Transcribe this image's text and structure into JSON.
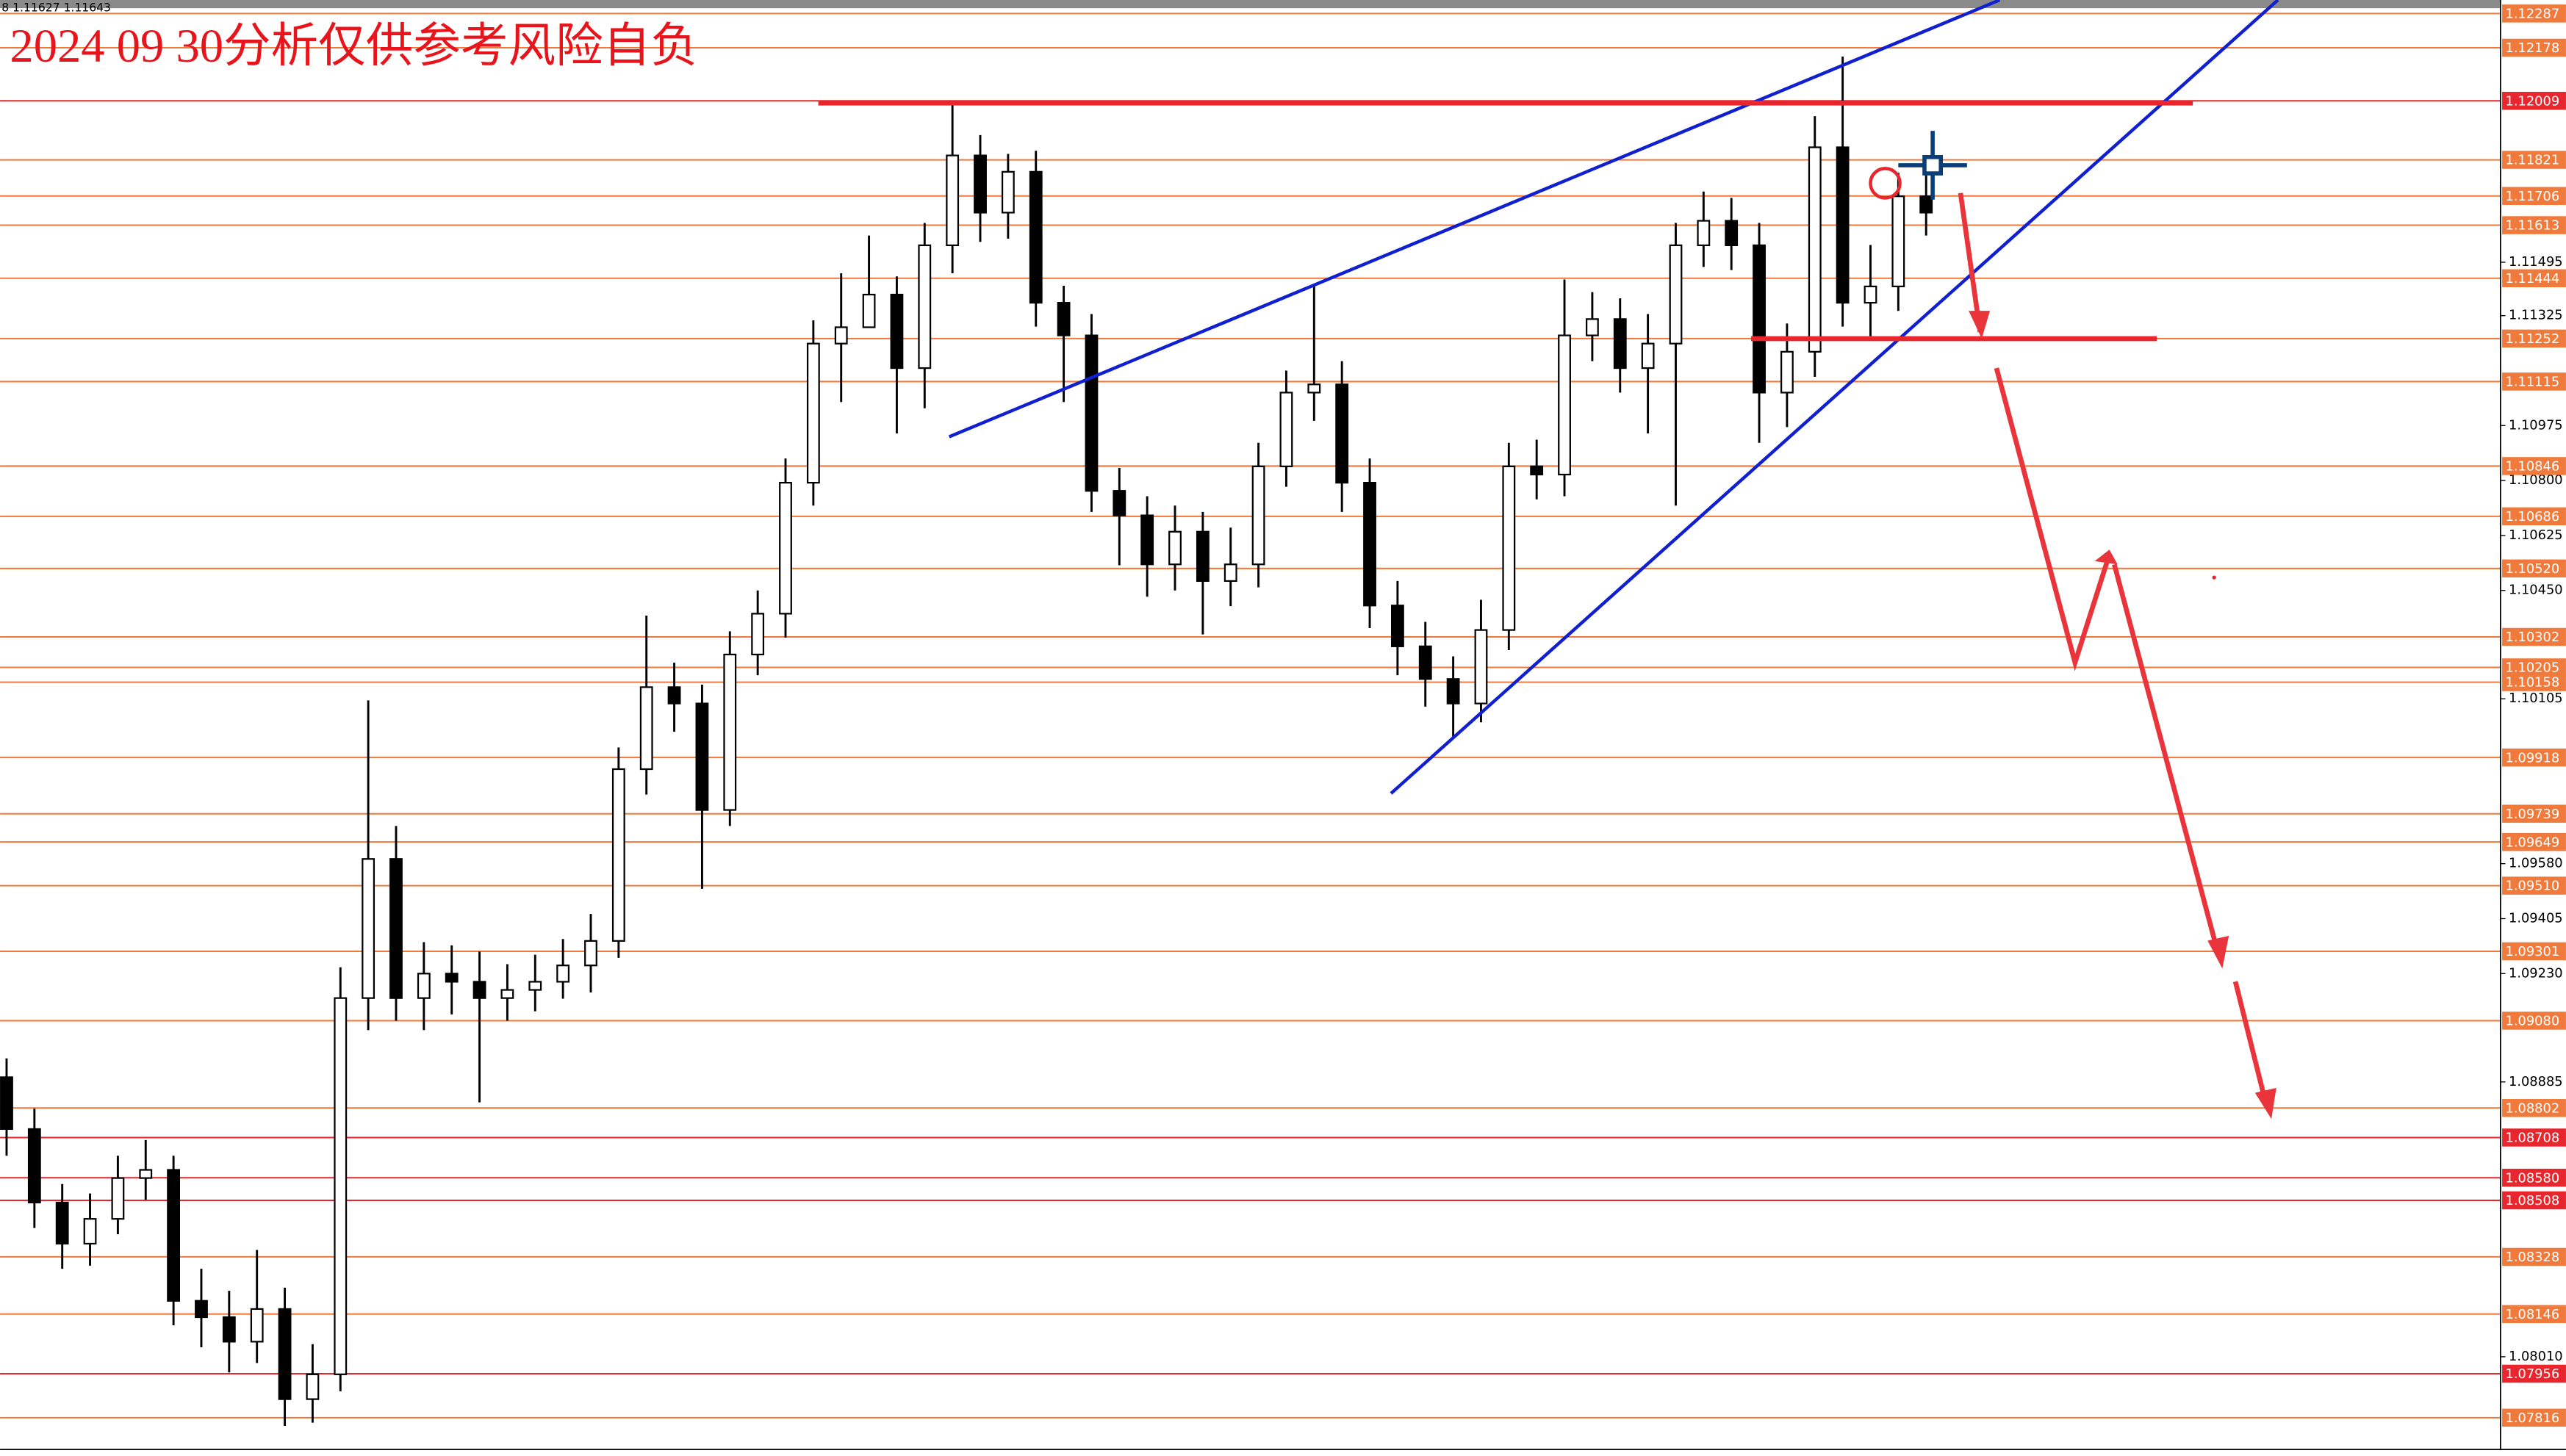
{
  "chart_data": {
    "type": "candlestick",
    "title": "2024 09 30分析仅供参考风险自负",
    "info_text": "8 1.11627 1.11643",
    "ylim": [
      1.0772,
      1.1233
    ],
    "up_color": "#ffffff",
    "down_color": "#000000",
    "wick_color": "#000000",
    "level_color": "#f07a3c",
    "red_level_color": "#e8262e",
    "open": [
      1.089,
      1.08735,
      1.08501,
      1.0837,
      1.08449,
      1.08579,
      1.08605,
      1.08188,
      1.08136,
      1.08058,
      1.08162,
      1.07875,
      1.07954,
      1.09152,
      1.09595,
      1.09152,
      1.0923,
      1.09204,
      1.09152,
      1.09178,
      1.09204,
      1.09256,
      1.09334,
      1.09881,
      1.10142,
      1.1009,
      1.09751,
      1.10246,
      1.10376,
      1.10793,
      1.11236,
      1.11288,
      1.11392,
      1.11158,
      1.11549,
      1.11835,
      1.11653,
      1.11783,
      1.11366,
      1.11262,
      1.10767,
      1.10689,
      1.10533,
      1.10637,
      1.1048,
      1.10533,
      1.10845,
      1.1108,
      1.11106,
      1.10793,
      1.10402,
      1.10272,
      1.10168,
      1.1009,
      1.10324,
      1.10845,
      1.10819,
      1.11262,
      1.11314,
      1.11158,
      1.11236,
      1.11549,
      1.11627,
      1.11549,
      1.1108,
      1.1121,
      1.11861,
      1.11366,
      1.11418,
      1.11705
    ],
    "high": [
      1.0896,
      1.088,
      1.0856,
      1.0853,
      1.0865,
      1.087,
      1.0865,
      1.0829,
      1.0822,
      1.0835,
      1.0823,
      1.0805,
      1.0925,
      1.101,
      1.097,
      1.0933,
      1.0932,
      1.093,
      1.0926,
      1.0929,
      1.0934,
      1.0942,
      1.0995,
      1.1037,
      1.1022,
      1.1015,
      1.1032,
      1.1045,
      1.1087,
      1.1131,
      1.1146,
      1.1158,
      1.1145,
      1.1162,
      1.12,
      1.119,
      1.1184,
      1.1185,
      1.1142,
      1.1133,
      1.1084,
      1.1075,
      1.1072,
      1.107,
      1.1065,
      1.1092,
      1.1115,
      1.1142,
      1.1118,
      1.1087,
      1.1048,
      1.1035,
      1.1024,
      1.1042,
      1.1092,
      1.1093,
      1.1144,
      1.114,
      1.1138,
      1.1133,
      1.1162,
      1.1172,
      1.117,
      1.1162,
      1.113,
      1.1196,
      1.1215,
      1.1155,
      1.1178,
      1.118
    ],
    "low": [
      1.0865,
      1.0842,
      1.0829,
      1.083,
      1.084,
      1.0851,
      1.0811,
      1.0804,
      1.0796,
      1.0799,
      1.0779,
      1.078,
      1.079,
      1.0905,
      1.0908,
      1.0905,
      1.091,
      1.0882,
      1.0908,
      1.0911,
      1.0915,
      1.0917,
      1.0928,
      1.098,
      1.1,
      1.095,
      1.097,
      1.1018,
      1.103,
      1.1072,
      1.1105,
      1.113,
      1.1095,
      1.1103,
      1.1146,
      1.1156,
      1.1157,
      1.1129,
      1.1105,
      1.107,
      1.1053,
      1.1043,
      1.1045,
      1.1031,
      1.104,
      1.1046,
      1.1078,
      1.1099,
      1.107,
      1.1033,
      1.1018,
      1.1008,
      1.0998,
      1.1003,
      1.1026,
      1.1074,
      1.1075,
      1.1118,
      1.1108,
      1.1095,
      1.1072,
      1.1148,
      1.1147,
      1.1092,
      1.1097,
      1.1113,
      1.1129,
      1.1126,
      1.1134,
      1.1158
    ],
    "close": [
      1.08735,
      1.08501,
      1.0837,
      1.08449,
      1.08579,
      1.08605,
      1.08188,
      1.08136,
      1.08058,
      1.08162,
      1.07875,
      1.07954,
      1.09152,
      1.09595,
      1.09152,
      1.0923,
      1.09204,
      1.09152,
      1.09178,
      1.09204,
      1.09256,
      1.09334,
      1.09881,
      1.10142,
      1.1009,
      1.09751,
      1.10246,
      1.10376,
      1.10793,
      1.11236,
      1.11288,
      1.11392,
      1.11158,
      1.11549,
      1.11835,
      1.11653,
      1.11783,
      1.11366,
      1.11262,
      1.10767,
      1.10689,
      1.10533,
      1.10637,
      1.1048,
      1.10533,
      1.10845,
      1.1108,
      1.11106,
      1.10793,
      1.10402,
      1.10272,
      1.10168,
      1.1009,
      1.10324,
      1.10845,
      1.10819,
      1.11262,
      1.11314,
      1.11158,
      1.11236,
      1.11549,
      1.11627,
      1.11549,
      1.1108,
      1.1121,
      1.11861,
      1.11366,
      1.11418,
      1.11705,
      1.11653
    ],
    "levels": [
      1.12287,
      1.12178,
      1.11821,
      1.11706,
      1.11613,
      1.11444,
      1.11252,
      1.11115,
      1.10846,
      1.10686,
      {
        "value": 1.1052,
        "label": "1.10520"
      },
      1.10302,
      1.10205,
      1.10158,
      1.09918,
      1.09739,
      1.09649,
      {
        "value": 1.0951,
        "label": "1.09510"
      },
      1.09301,
      {
        "value": 1.0908,
        "label": "1.09080"
      },
      1.08802,
      1.08328,
      1.08146,
      1.07816
    ],
    "red_levels": [
      1.12009,
      1.08708,
      {
        "value": 1.0858,
        "label": "1.08580"
      },
      1.08508,
      1.07956
    ],
    "yticks": [
      1.11495,
      1.11325,
      1.10975,
      {
        "value": 1.108,
        "label": "1.10800"
      },
      1.10625,
      {
        "value": 1.1045,
        "label": "1.10450"
      },
      1.10105,
      {
        "value": 1.0958,
        "label": "1.09580"
      },
      1.09405,
      {
        "value": 1.0923,
        "label": "1.09230"
      },
      1.08885,
      {
        "value": 1.0801,
        "label": "1.08010"
      }
    ]
  }
}
